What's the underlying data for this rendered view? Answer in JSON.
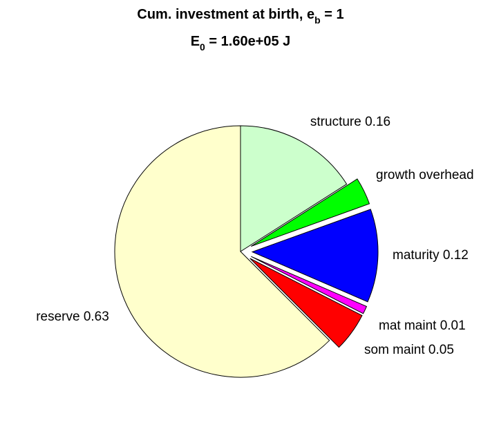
{
  "chart_data": {
    "type": "pie",
    "title": {
      "line1_prefix": "Cum. investment at birth, e",
      "line1_sub": "b",
      "line1_suffix": " = 1",
      "line2_prefix": "E",
      "line2_sub": "0",
      "line2_suffix": " = 1.60e+05 J"
    },
    "slices": [
      {
        "key": "structure",
        "label": "structure 0.16",
        "value": 0.16,
        "color": "#ccffcc",
        "exploded": false
      },
      {
        "key": "growth-overhead",
        "label": "growth overhead",
        "value": 0.035,
        "color": "#00ff00",
        "exploded": true
      },
      {
        "key": "maturity",
        "label": "maturity 0.12",
        "value": 0.12,
        "color": "#0000ff",
        "exploded": true
      },
      {
        "key": "mat-maint",
        "label": "mat maint 0.01",
        "value": 0.01,
        "color": "#ff00ff",
        "exploded": true
      },
      {
        "key": "som-maint",
        "label": "som maint 0.05",
        "value": 0.05,
        "color": "#ff0000",
        "exploded": true
      },
      {
        "key": "reserve",
        "label": "reserve 0.63",
        "value": 0.625,
        "color": "#ffffcc",
        "exploded": false
      }
    ],
    "start": "12 o'clock",
    "direction": "clockwise"
  }
}
